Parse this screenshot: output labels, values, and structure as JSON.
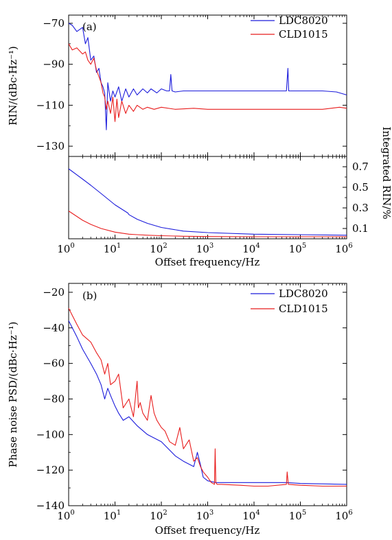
{
  "figure": {
    "panel_a_label": "(a)",
    "panel_b_label": "(b)",
    "xlabel": "Offset frequency/Hz",
    "colors": {
      "LDC8020": "#1a1adb",
      "CLD1015": "#e81c1c"
    }
  },
  "chart_data": [
    {
      "id": "a-top",
      "type": "line",
      "panel": "(a)",
      "xscale": "log",
      "xlim": [
        1,
        1000000
      ],
      "ylim": [
        -135,
        -66
      ],
      "yticks": [
        -70,
        -90,
        -110,
        -130
      ],
      "ytick_labels": [
        "−70",
        "−90",
        "−110",
        "−130"
      ],
      "ylabel": "RIN/(dBc·Hz⁻¹)",
      "legend_position": "top-right",
      "series": [
        {
          "name": "LDC8020",
          "color": "#1a1adb",
          "x": [
            1,
            1.2,
            1.5,
            2,
            2.3,
            2.6,
            3,
            3.5,
            4,
            4.5,
            5,
            5.5,
            6,
            6.5,
            7,
            8,
            9,
            10,
            12,
            14,
            17,
            20,
            25,
            30,
            40,
            50,
            60,
            80,
            100,
            130,
            150,
            160,
            170,
            200,
            300,
            500,
            1000,
            3000,
            10000,
            30000,
            50000,
            54000,
            56000,
            60000,
            100000,
            300000,
            600000,
            1000000
          ],
          "y": [
            -70,
            -71,
            -74,
            -72,
            -80,
            -77,
            -88,
            -86,
            -94,
            -92,
            -99,
            -101,
            -104,
            -122,
            -99,
            -108,
            -103,
            -106,
            -101,
            -108,
            -102,
            -106,
            -102,
            -105,
            -102,
            -104,
            -102,
            -104,
            -102,
            -103,
            -103,
            -95,
            -103,
            -103.5,
            -103,
            -103,
            -103,
            -103,
            -103,
            -103,
            -103,
            -92,
            -103,
            -103,
            -103,
            -103,
            -103.5,
            -105
          ]
        },
        {
          "name": "CLD1015",
          "color": "#e81c1c",
          "x": [
            1,
            1.2,
            1.5,
            2,
            2.3,
            2.6,
            3,
            3.5,
            4,
            4.5,
            5,
            5.5,
            6,
            6.5,
            7,
            8,
            9,
            10,
            11,
            12,
            14,
            17,
            20,
            25,
            30,
            40,
            50,
            70,
            100,
            200,
            500,
            1000,
            3000,
            10000,
            30000,
            100000,
            300000,
            700000,
            1000000
          ],
          "y": [
            -80,
            -83,
            -82,
            -85,
            -84,
            -88,
            -90,
            -87,
            -93,
            -96,
            -99,
            -104,
            -106,
            -112,
            -108,
            -114,
            -106,
            -118,
            -107,
            -116,
            -108,
            -114,
            -110,
            -113,
            -110,
            -112,
            -111,
            -112,
            -111,
            -112,
            -111.5,
            -112,
            -112,
            -112,
            -112,
            -112,
            -112,
            -111,
            -111.5
          ]
        }
      ]
    },
    {
      "id": "a-bottom",
      "type": "line",
      "panel": "(a)",
      "xscale": "log",
      "xlim": [
        1,
        1000000
      ],
      "xticks": [
        1,
        10,
        100,
        1000,
        10000,
        100000,
        1000000
      ],
      "xtick_labels": [
        "10^0",
        "10^1",
        "10^2",
        "10^3",
        "10^4",
        "10^5",
        "10^6"
      ],
      "ylim": [
        0,
        0.8
      ],
      "yticks": [
        0.1,
        0.3,
        0.5,
        0.7
      ],
      "ytick_labels": [
        "0.1",
        "0.3",
        "0.5",
        "0.7"
      ],
      "ylabel": "Integrated RIN/%",
      "xlabel": "Offset frequency/Hz",
      "series": [
        {
          "name": "LDC8020",
          "color": "#1a1adb",
          "x": [
            1,
            2,
            3,
            5,
            10,
            19,
            20,
            30,
            50,
            100,
            300,
            1000,
            10000,
            100000,
            1000000
          ],
          "y": [
            0.68,
            0.58,
            0.52,
            0.44,
            0.33,
            0.25,
            0.235,
            0.19,
            0.15,
            0.11,
            0.075,
            0.06,
            0.045,
            0.04,
            0.035
          ]
        },
        {
          "name": "CLD1015",
          "color": "#e81c1c",
          "x": [
            1,
            2,
            3,
            5,
            10,
            20,
            30,
            50,
            100,
            300,
            1000,
            10000,
            100000,
            1000000
          ],
          "y": [
            0.27,
            0.18,
            0.14,
            0.1,
            0.065,
            0.045,
            0.04,
            0.035,
            0.03,
            0.025,
            0.022,
            0.02,
            0.02,
            0.02
          ]
        }
      ]
    },
    {
      "id": "b",
      "type": "line",
      "panel": "(b)",
      "xscale": "log",
      "xlim": [
        1,
        1000000
      ],
      "xticks": [
        1,
        10,
        100,
        1000,
        10000,
        100000,
        1000000
      ],
      "xtick_labels": [
        "10^0",
        "10^1",
        "10^2",
        "10^3",
        "10^4",
        "10^5",
        "10^6"
      ],
      "ylim": [
        -140,
        -15
      ],
      "yticks": [
        -20,
        -40,
        -60,
        -80,
        -100,
        -120,
        -140
      ],
      "ytick_labels": [
        "−20",
        "−40",
        "−60",
        "−80",
        "−100",
        "−120",
        "−140"
      ],
      "ylabel": "Phase noise PSD/(dBc·Hz⁻¹)",
      "xlabel": "Offset frequency/Hz",
      "legend_position": "top-right",
      "series": [
        {
          "name": "LDC8020",
          "color": "#1a1adb",
          "x": [
            1,
            1.5,
            2,
            3,
            4,
            5,
            6,
            7,
            8,
            10,
            12,
            15,
            20,
            30,
            50,
            100,
            200,
            300,
            500,
            600,
            700,
            800,
            1000,
            1500,
            2000,
            5000,
            10000,
            50000,
            100000,
            1000000
          ],
          "y": [
            -36,
            -45,
            -52,
            -60,
            -66,
            -72,
            -80,
            -74,
            -78,
            -84,
            -88,
            -92,
            -90,
            -95,
            -100,
            -104,
            -112,
            -115,
            -118,
            -110,
            -117,
            -124,
            -126,
            -127,
            -127,
            -127,
            -127,
            -127,
            -127.5,
            -128
          ]
        },
        {
          "name": "CLD1015",
          "color": "#e81c1c",
          "x": [
            1,
            1.5,
            2,
            3,
            4,
            5,
            6,
            7,
            8,
            10,
            12,
            15,
            20,
            25,
            30,
            32,
            35,
            40,
            50,
            60,
            70,
            80,
            100,
            120,
            150,
            200,
            250,
            300,
            400,
            500,
            600,
            700,
            800,
            1000,
            1200,
            1400,
            1450,
            1500,
            1600,
            2000,
            5000,
            10000,
            20000,
            50000,
            52000,
            55000,
            100000,
            300000,
            1000000
          ],
          "y": [
            -29,
            -38,
            -44,
            -48,
            -54,
            -58,
            -66,
            -60,
            -72,
            -70,
            -66,
            -85,
            -80,
            -90,
            -70,
            -85,
            -82,
            -88,
            -92,
            -78,
            -88,
            -92,
            -96,
            -98,
            -104,
            -106,
            -96,
            -108,
            -103,
            -115,
            -113,
            -118,
            -121,
            -124,
            -127,
            -128,
            -108,
            -127,
            -128,
            -128,
            -128.5,
            -129,
            -129,
            -128,
            -121,
            -128,
            -128.5,
            -129,
            -129
          ]
        }
      ]
    }
  ]
}
